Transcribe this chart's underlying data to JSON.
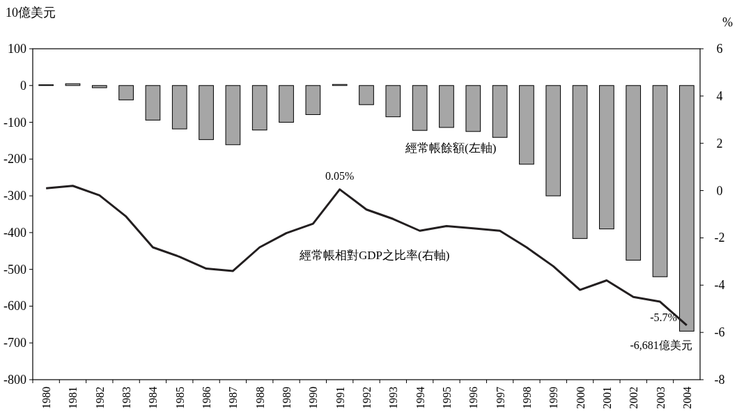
{
  "chart_data": {
    "type": "bar",
    "ylabel": "10億美元",
    "y2label": "%",
    "categories": [
      "1980",
      "1981",
      "1982",
      "1983",
      "1984",
      "1985",
      "1986",
      "1987",
      "1988",
      "1989",
      "1990",
      "1991",
      "1992",
      "1993",
      "1994",
      "1995",
      "1996",
      "1997",
      "1998",
      "1999",
      "2000",
      "2001",
      "2002",
      "2003",
      "2004"
    ],
    "series": [
      {
        "name": "經常帳餘額(左軸)",
        "color": "#a6a6a6",
        "values": [
          2,
          5,
          -6,
          -39,
          -94,
          -118,
          -147,
          -161,
          -121,
          -100,
          -79,
          3,
          -52,
          -85,
          -122,
          -114,
          -125,
          -141,
          -214,
          -300,
          -416,
          -390,
          -475,
          -520,
          -668
        ]
      },
      {
        "name": "經常帳相對GDP之比率(右軸)",
        "type": "line",
        "axis": "y2",
        "color": "#231f20",
        "values": [
          0.1,
          0.2,
          -0.2,
          -1.1,
          -2.4,
          -2.8,
          -3.3,
          -3.4,
          -2.4,
          -1.8,
          -1.4,
          0.05,
          -0.8,
          -1.2,
          -1.7,
          -1.5,
          -1.6,
          -1.7,
          -2.4,
          -3.2,
          -4.2,
          -3.8,
          -4.5,
          -4.7,
          -5.7
        ]
      }
    ],
    "ylim": [
      -800,
      100
    ],
    "yticks": [
      -800,
      -700,
      -600,
      -500,
      -400,
      -300,
      -200,
      -100,
      0,
      100
    ],
    "y2lim": [
      -8,
      6
    ],
    "y2ticks": [
      -8,
      -6,
      -4,
      -2,
      0,
      2,
      4,
      6
    ],
    "annotations": [
      "0.05%",
      "-5.7%",
      {
        "text": "-6,681億美元",
        "x": "2004",
        "y": -668
      }
    ]
  }
}
